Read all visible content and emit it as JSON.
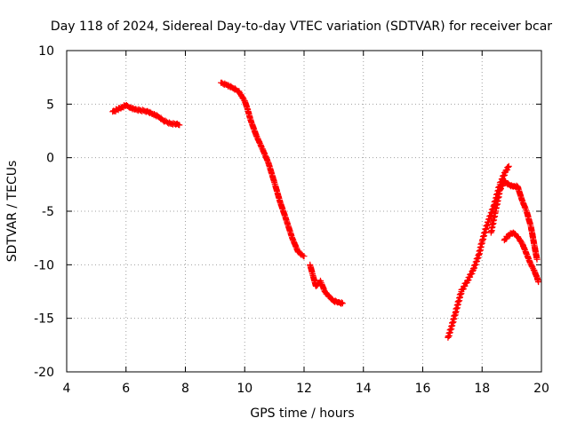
{
  "chart_data": {
    "type": "scatter",
    "title": "Day 118 of 2024, Sidereal Day-to-day VTEC variation (SDTVAR) for receiver bcar",
    "xlabel": "GPS time / hours",
    "ylabel": "SDTVAR / TECUs",
    "xlim": [
      4,
      20
    ],
    "ylim": [
      -20,
      10
    ],
    "xticks": [
      4,
      6,
      8,
      10,
      12,
      14,
      16,
      18,
      20
    ],
    "yticks": [
      -20,
      -15,
      -10,
      -5,
      0,
      5,
      10
    ],
    "grid": true,
    "grid_style": "dotted",
    "legend": "none",
    "marker": "plus",
    "series_color": "#ff0000",
    "series": [
      {
        "x": [
          5.55,
          5.7,
          5.85,
          6.0,
          6.15,
          6.3,
          6.5,
          6.7,
          6.9,
          7.1,
          7.3,
          7.5,
          7.7,
          7.8
        ],
        "y": [
          4.3,
          4.5,
          4.7,
          4.85,
          4.7,
          4.5,
          4.4,
          4.35,
          4.1,
          3.8,
          3.4,
          3.2,
          3.15,
          3.05
        ]
      },
      {
        "x": [
          9.2,
          9.4,
          9.6,
          9.8,
          10.0,
          10.1,
          10.2,
          10.4,
          10.6,
          10.8,
          11.0,
          11.2,
          11.4,
          11.6,
          11.8,
          12.0
        ],
        "y": [
          7.0,
          6.8,
          6.5,
          6.2,
          5.3,
          4.5,
          3.5,
          2.0,
          0.8,
          -0.5,
          -2.3,
          -4.2,
          -5.8,
          -7.5,
          -8.8,
          -9.2
        ]
      },
      {
        "x": [
          12.2,
          12.3,
          12.4,
          12.55,
          12.7,
          12.85,
          13.0,
          13.15,
          13.3
        ],
        "y": [
          -10.0,
          -11.0,
          -12.0,
          -11.5,
          -12.5,
          -13.0,
          -13.4,
          -13.5,
          -13.6
        ]
      },
      {
        "x": [
          16.85,
          16.95,
          17.1,
          17.3,
          17.5,
          17.7,
          17.9,
          18.0,
          18.2,
          18.4,
          18.6,
          18.8,
          18.9
        ],
        "y": [
          -16.8,
          -16.0,
          -14.5,
          -12.5,
          -11.5,
          -10.5,
          -9.0,
          -7.8,
          -6.0,
          -4.5,
          -2.5,
          -1.2,
          -0.8
        ]
      },
      {
        "x": [
          18.3,
          18.45,
          18.6,
          18.75,
          18.9,
          19.05,
          19.2,
          19.35,
          19.5,
          19.65,
          19.75,
          19.85
        ],
        "y": [
          -7.0,
          -5.0,
          -3.0,
          -2.2,
          -2.5,
          -2.7,
          -2.7,
          -4.0,
          -5.0,
          -6.5,
          -8.0,
          -9.5
        ]
      },
      {
        "x": [
          18.75,
          18.9,
          19.05,
          19.2,
          19.35,
          19.5,
          19.65,
          19.75,
          19.85,
          19.9
        ],
        "y": [
          -7.7,
          -7.2,
          -7.0,
          -7.4,
          -8.0,
          -9.0,
          -10.0,
          -10.5,
          -11.2,
          -11.6
        ]
      }
    ]
  }
}
